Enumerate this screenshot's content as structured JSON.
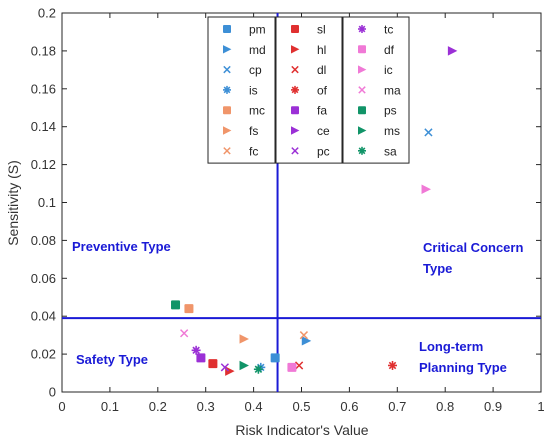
{
  "chart_data": {
    "type": "scatter",
    "xlabel": "Risk Indicator's Value",
    "ylabel": "Sensitivity (S)",
    "xlim": [
      0,
      1
    ],
    "ylim": [
      0,
      0.2
    ],
    "xticks": [
      0,
      0.1,
      0.2,
      0.3,
      0.4,
      0.5,
      0.6,
      0.7,
      0.8,
      0.9,
      1
    ],
    "yticks": [
      0,
      0.02,
      0.04,
      0.06,
      0.08,
      0.1,
      0.12,
      0.14,
      0.16,
      0.18,
      0.2
    ],
    "xtick_labels": [
      "0",
      "0.1",
      "0.2",
      "0.3",
      "0.4",
      "0.5",
      "0.6",
      "0.7",
      "0.8",
      "0.9",
      "1"
    ],
    "ytick_labels": [
      "0",
      "0.02",
      "0.04",
      "0.06",
      "0.08",
      "0.1",
      "0.12",
      "0.14",
      "0.16",
      "0.18",
      "0.2"
    ],
    "grid": false,
    "legend_position": "top-center",
    "threshold_x": 0.45,
    "threshold_y": 0.039,
    "threshold_color": "#1a1ad6",
    "zone_labels": {
      "preventive": "Preventive Type",
      "critical_line1": "Critical Concern",
      "critical_line2": "Type",
      "safety": "Safety Type",
      "longterm_line1": "Long-term",
      "longterm_line2": "Planning Type"
    },
    "series": [
      {
        "name": "pm",
        "marker": "square",
        "color": "#3d8fd6",
        "x": 0.445,
        "y": 0.018
      },
      {
        "name": "md",
        "marker": "triangle-right",
        "color": "#3d8fd6",
        "x": 0.51,
        "y": 0.027
      },
      {
        "name": "cp",
        "marker": "x",
        "color": "#3d8fd6",
        "x": 0.765,
        "y": 0.137
      },
      {
        "name": "is",
        "marker": "asterisk",
        "color": "#3d8fd6",
        "x": 0.415,
        "y": 0.013
      },
      {
        "name": "mc",
        "marker": "square",
        "color": "#f0956a",
        "x": 0.265,
        "y": 0.044
      },
      {
        "name": "fs",
        "marker": "triangle-right",
        "color": "#f0956a",
        "x": 0.38,
        "y": 0.028
      },
      {
        "name": "fc",
        "marker": "x",
        "color": "#f0956a",
        "x": 0.505,
        "y": 0.03
      },
      {
        "name": "sl",
        "marker": "square",
        "color": "#e03030",
        "x": 0.315,
        "y": 0.015
      },
      {
        "name": "hl",
        "marker": "triangle-right",
        "color": "#e03030",
        "x": 0.35,
        "y": 0.011
      },
      {
        "name": "dl",
        "marker": "x",
        "color": "#e03030",
        "x": 0.495,
        "y": 0.014
      },
      {
        "name": "of",
        "marker": "asterisk",
        "color": "#e03030",
        "x": 0.69,
        "y": 0.014
      },
      {
        "name": "fa",
        "marker": "square",
        "color": "#9b30d6",
        "x": 0.29,
        "y": 0.018
      },
      {
        "name": "ce",
        "marker": "triangle-right",
        "color": "#9b30d6",
        "x": 0.815,
        "y": 0.18
      },
      {
        "name": "pc",
        "marker": "x",
        "color": "#9b30d6",
        "x": 0.34,
        "y": 0.013
      },
      {
        "name": "tc",
        "marker": "asterisk",
        "color": "#9b30d6",
        "x": 0.28,
        "y": 0.022
      },
      {
        "name": "df",
        "marker": "square",
        "color": "#f079d6",
        "x": 0.48,
        "y": 0.013
      },
      {
        "name": "ic",
        "marker": "triangle-right",
        "color": "#f079d6",
        "x": 0.76,
        "y": 0.107
      },
      {
        "name": "ma",
        "marker": "x",
        "color": "#f079d6",
        "x": 0.255,
        "y": 0.031
      },
      {
        "name": "ps",
        "marker": "square",
        "color": "#119468",
        "x": 0.237,
        "y": 0.046
      },
      {
        "name": "ms",
        "marker": "triangle-right",
        "color": "#119468",
        "x": 0.38,
        "y": 0.014
      },
      {
        "name": "sa",
        "marker": "asterisk",
        "color": "#119468",
        "x": 0.41,
        "y": 0.012
      }
    ]
  }
}
